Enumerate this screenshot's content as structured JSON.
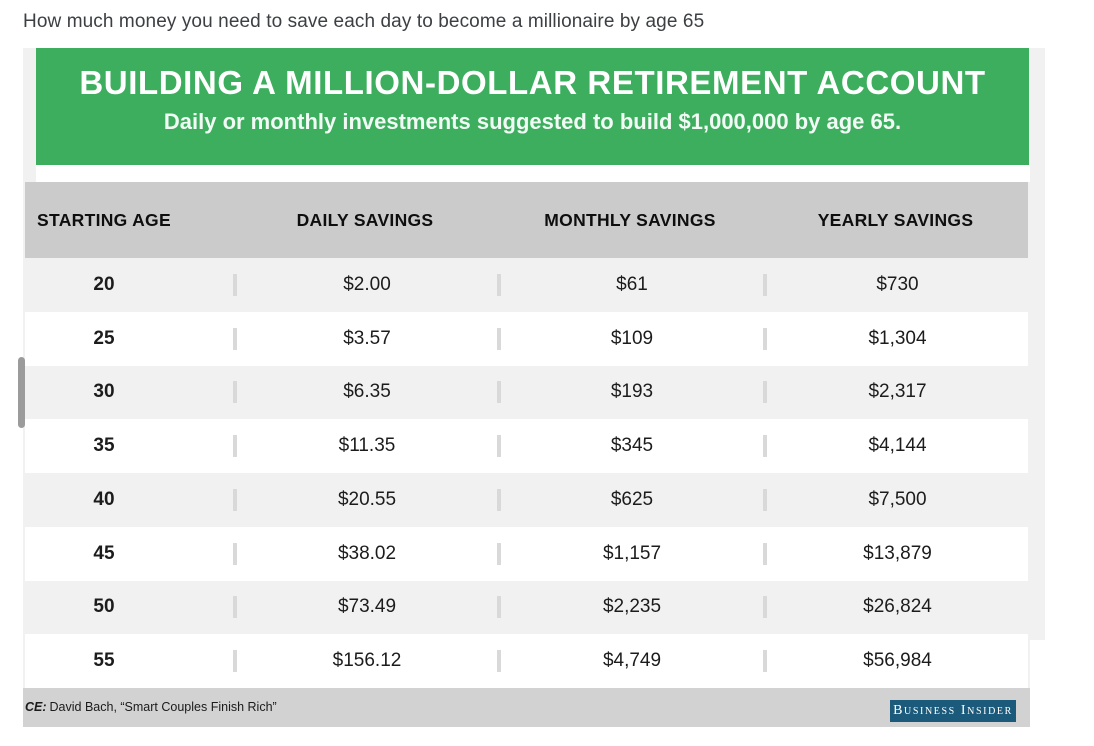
{
  "page_caption": "How much money you need to save each day to become a millionaire by age 65",
  "chart_data": {
    "type": "table",
    "title": "BUILDING A MILLION-DOLLAR RETIREMENT ACCOUNT",
    "subtitle": "Daily or monthly investments suggested to build $1,000,000 by age 65.",
    "columns": [
      "STARTING AGE",
      "DAILY SAVINGS",
      "MONTHLY SAVINGS",
      "YEARLY SAVINGS"
    ],
    "rows": [
      [
        "20",
        "$2.00",
        "$61",
        "$730"
      ],
      [
        "25",
        "$3.57",
        "$109",
        "$1,304"
      ],
      [
        "30",
        "$6.35",
        "$193",
        "$2,317"
      ],
      [
        "35",
        "$11.35",
        "$345",
        "$4,144"
      ],
      [
        "40",
        "$20.55",
        "$625",
        "$7,500"
      ],
      [
        "45",
        "$38.02",
        "$1,157",
        "$13,879"
      ],
      [
        "50",
        "$73.49",
        "$2,235",
        "$26,824"
      ],
      [
        "55",
        "$156.12",
        "$4,749",
        "$56,984"
      ]
    ],
    "layout": {
      "row_striping": "alternating light-gray/white starting with gray",
      "header_background": "#cbcbcb",
      "grid": "vertical column separators only"
    }
  },
  "infographic": {
    "source_prefix": "CE:",
    "source_text": "David Bach, “Smart Couples Finish Rich”",
    "brand_badge": "Business Insider",
    "colors": {
      "banner_green": "#3cae5e",
      "header_gray": "#cbcbcb",
      "row_alt_gray": "#f1f1f2",
      "footer_gray": "#d2d2d2",
      "badge_navy": "#1b5a7a"
    }
  }
}
